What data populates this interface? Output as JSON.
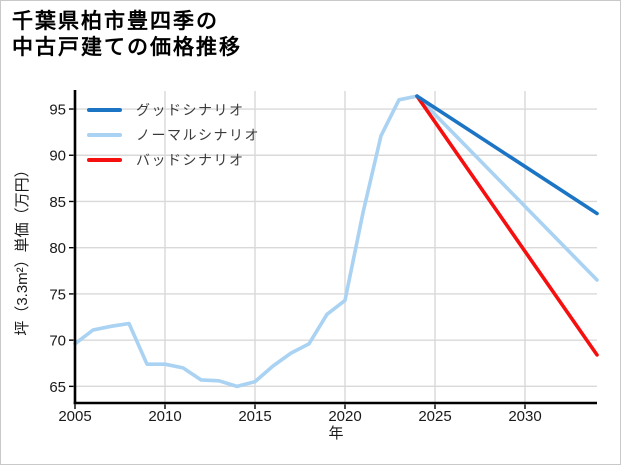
{
  "colors": {
    "background": "#ffffff",
    "figure_border": "#c9c9c9",
    "grid": "#d9d9d9",
    "spine": "#000000",
    "tick_text": "#1a1a1a",
    "legend_text": "#3a3a3a",
    "good_scenario": "#1c74c4",
    "normal_scenario": "#a9d2f3",
    "bad_scenario": "#f50f0f"
  },
  "chart_data": {
    "type": "line",
    "title": "千葉県柏市豊四季の\n中古戸建ての価格推移",
    "xlabel": "年",
    "ylabel": "坪（3.3m²）単価（万円）",
    "xlim": [
      2005,
      2034
    ],
    "ylim": [
      63.2,
      96.95
    ],
    "xticks": [
      2005,
      2010,
      2015,
      2020,
      2025,
      2030
    ],
    "yticks": [
      65,
      70,
      75,
      80,
      85,
      90,
      95
    ],
    "grid": true,
    "legend_position": "upper-left",
    "series": [
      {
        "name": "グッドシナリオ",
        "color": "#1c74c4",
        "x": [
          2024,
          2034
        ],
        "y": [
          96.4,
          83.7
        ]
      },
      {
        "name": "ノーマルシナリオ",
        "color": "#a9d2f3",
        "x": [
          2005,
          2006,
          2007,
          2008,
          2009,
          2010,
          2011,
          2012,
          2013,
          2014,
          2015,
          2016,
          2017,
          2018,
          2019,
          2020,
          2021,
          2022,
          2023,
          2024,
          2034
        ],
        "y": [
          69.6,
          71.1,
          71.5,
          71.8,
          67.4,
          67.4,
          67.0,
          65.7,
          65.6,
          65.0,
          65.5,
          67.2,
          68.6,
          69.6,
          72.8,
          74.3,
          83.8,
          92.1,
          96.0,
          96.4,
          76.5
        ]
      },
      {
        "name": "バッドシナリオ",
        "color": "#f50f0f",
        "x": [
          2024,
          2034
        ],
        "y": [
          96.4,
          68.4
        ]
      }
    ]
  }
}
